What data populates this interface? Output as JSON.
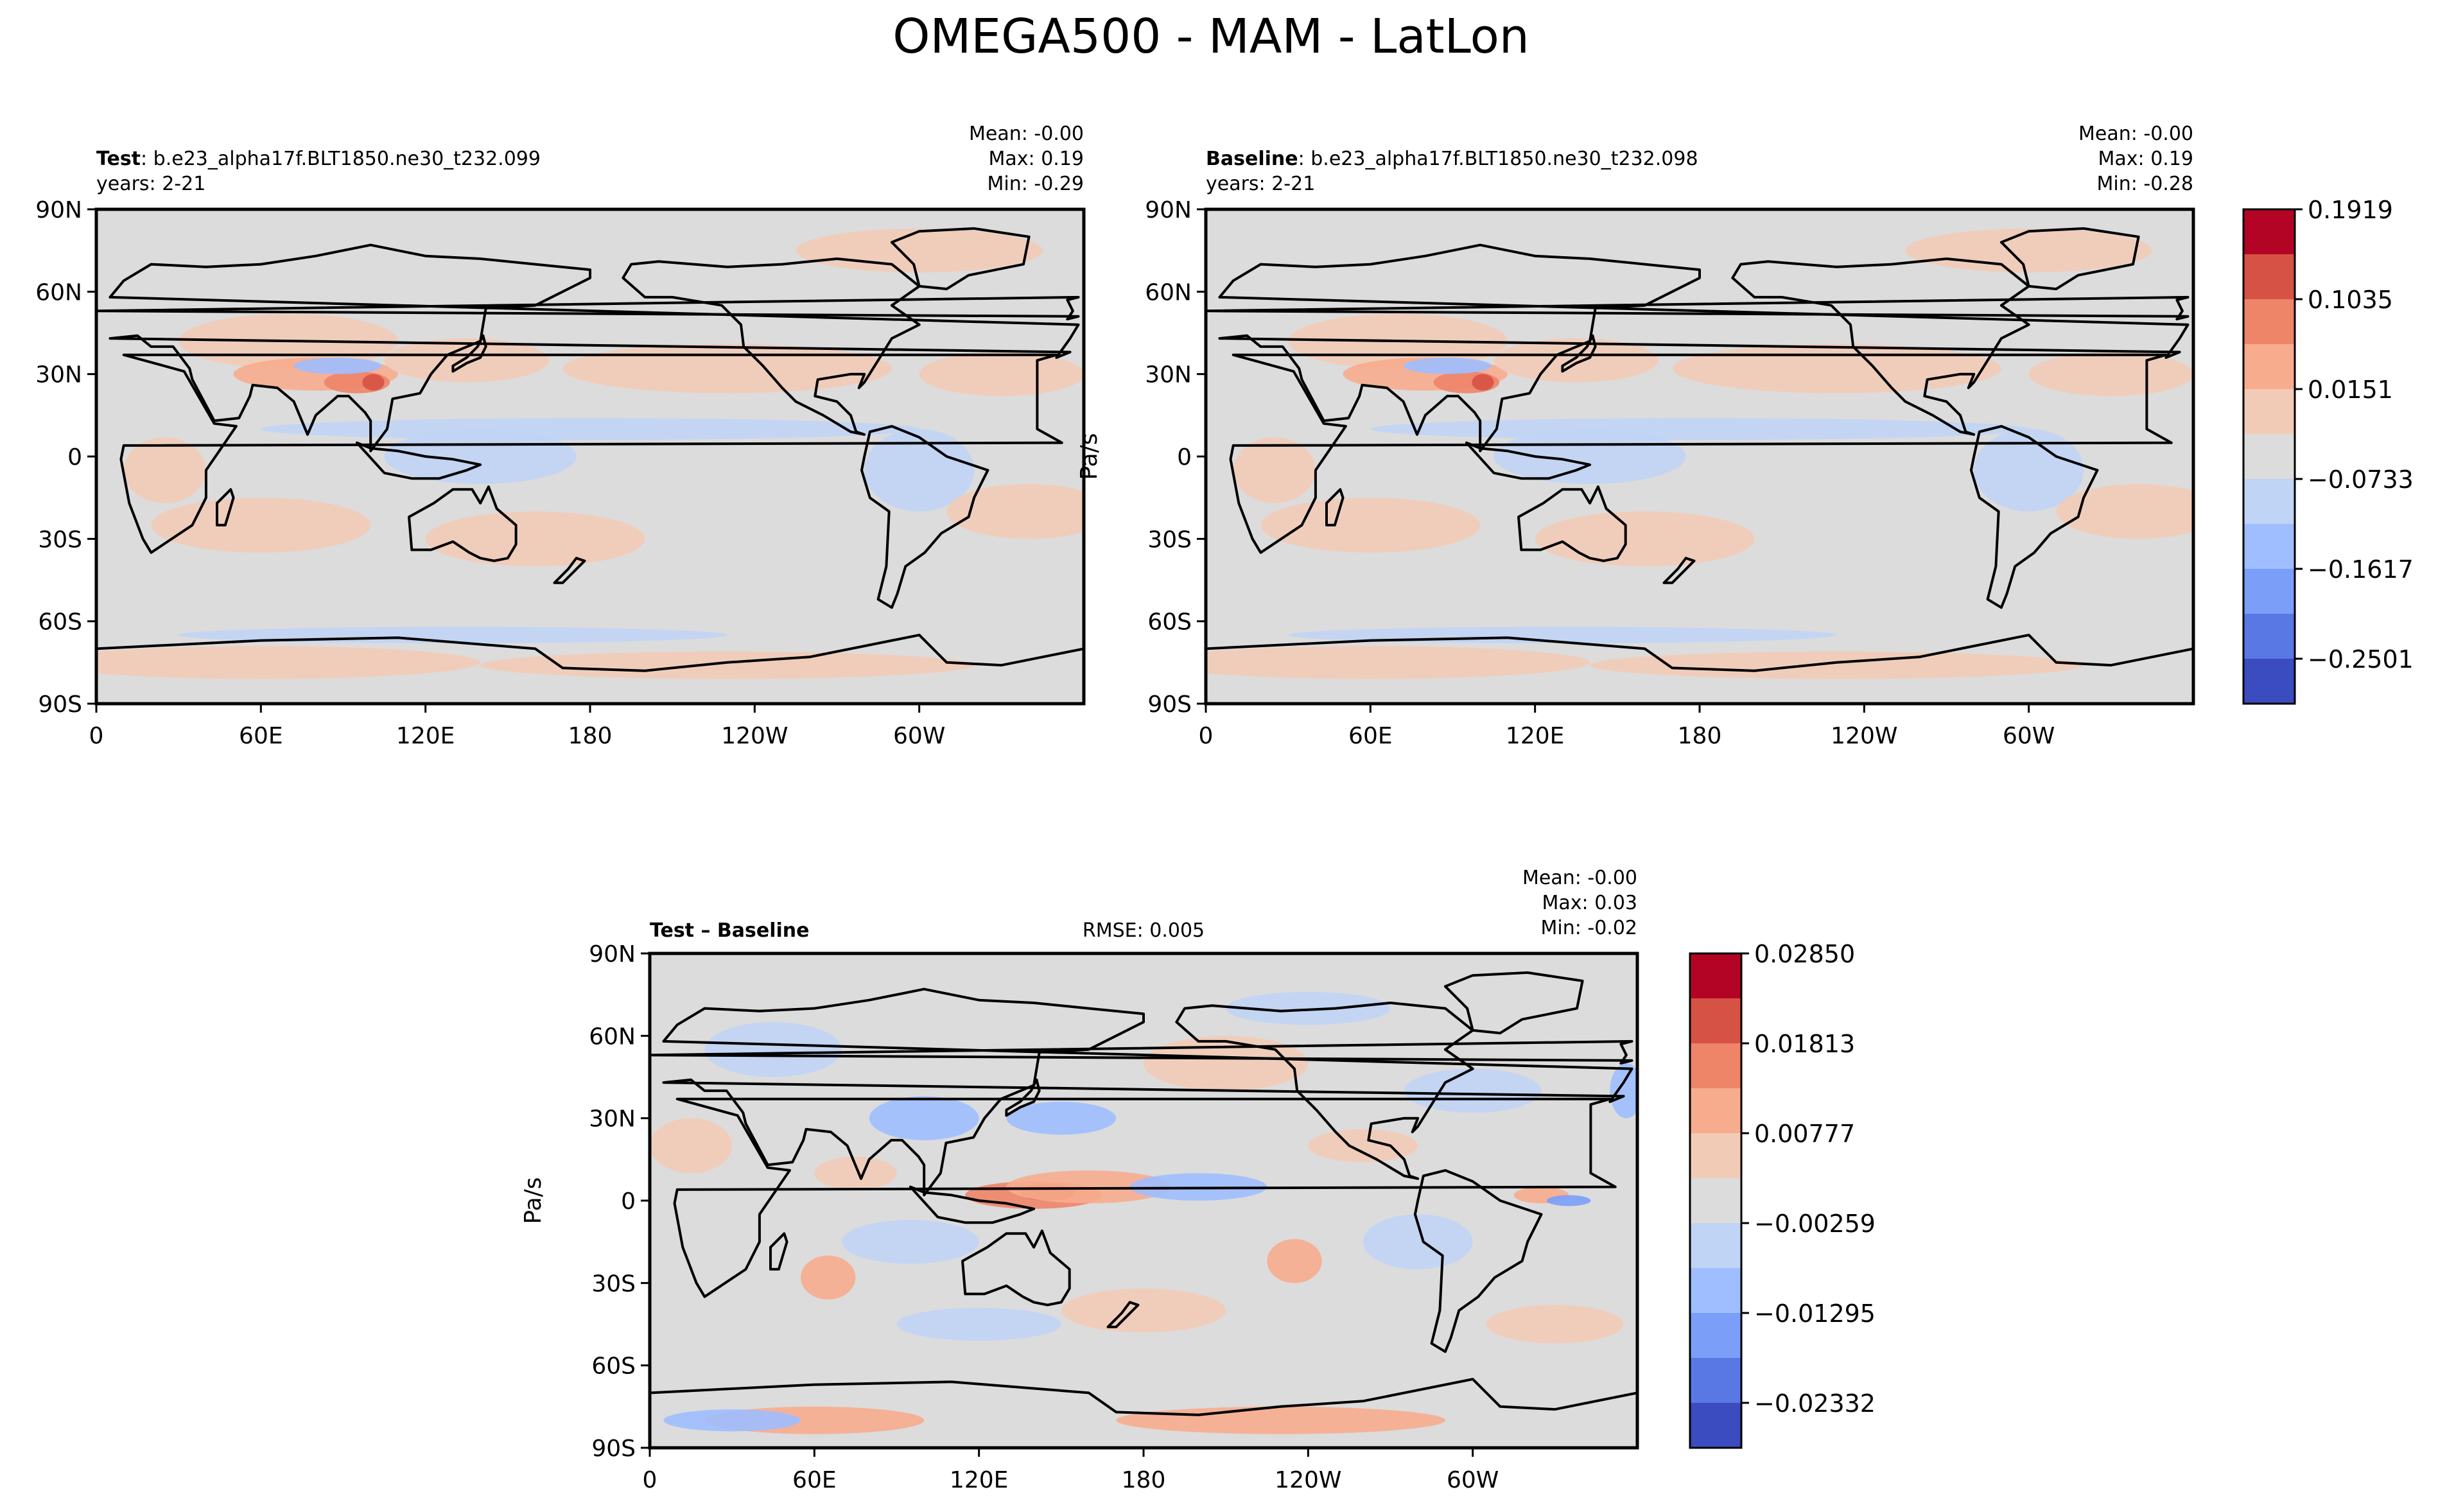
{
  "figure": {
    "title": "OMEGA500 - MAM - LatLon"
  },
  "colors": {
    "levels": [
      "#3b4cc0",
      "#5a78e4",
      "#7b9ff9",
      "#9ebeff",
      "#c0d4f5",
      "#dddcdc",
      "#f2cbb7",
      "#f7ac8e",
      "#ee8468",
      "#d65244",
      "#b40426"
    ],
    "ocean": "#dcdcdc",
    "land": "#d6d6d6"
  },
  "chart_data": [
    {
      "type": "heatmap",
      "panel": "test",
      "title_bold": "Test",
      "title_rest": ": b.e23_alpha17f.BLT1850.ne30_t232.099",
      "years": "years: 2-21",
      "stats": [
        "Mean: -0.00",
        "Max:  0.19",
        "Min: -0.29"
      ],
      "ylabel": "",
      "xticks": [
        "0",
        "60E",
        "120E",
        "180",
        "120W",
        "60W"
      ],
      "yticks": [
        "90N",
        "60N",
        "30N",
        "0",
        "30S",
        "60S",
        "90S"
      ],
      "xlim": [
        0,
        360
      ],
      "ylim": [
        -90,
        90
      ],
      "features": [
        {
          "lon": 70,
          "lat": 42,
          "rx": 40,
          "ry": 10,
          "level": 6
        },
        {
          "lon": 80,
          "lat": 30,
          "rx": 30,
          "ry": 6,
          "level": 7
        },
        {
          "lon": 95,
          "lat": 27,
          "rx": 12,
          "ry": 4,
          "level": 8
        },
        {
          "lon": 101,
          "lat": 27,
          "rx": 4,
          "ry": 3,
          "level": 9
        },
        {
          "lon": 88,
          "lat": 33,
          "rx": 16,
          "ry": 3,
          "level": 3
        },
        {
          "lon": 135,
          "lat": 35,
          "rx": 30,
          "ry": 8,
          "level": 6
        },
        {
          "lon": 230,
          "lat": 32,
          "rx": 60,
          "ry": 9,
          "level": 6
        },
        {
          "lon": 330,
          "lat": 30,
          "rx": 30,
          "ry": 8,
          "level": 6
        },
        {
          "lon": 300,
          "lat": 75,
          "rx": 45,
          "ry": 8,
          "level": 6
        },
        {
          "lon": 180,
          "lat": 10,
          "rx": 120,
          "ry": 4,
          "level": 4
        },
        {
          "lon": 140,
          "lat": 0,
          "rx": 35,
          "ry": 10,
          "level": 4
        },
        {
          "lon": 300,
          "lat": -5,
          "rx": 20,
          "ry": 15,
          "level": 4
        },
        {
          "lon": 25,
          "lat": -5,
          "rx": 15,
          "ry": 12,
          "level": 6
        },
        {
          "lon": 60,
          "lat": -25,
          "rx": 40,
          "ry": 10,
          "level": 6
        },
        {
          "lon": 160,
          "lat": -30,
          "rx": 40,
          "ry": 10,
          "level": 6
        },
        {
          "lon": 340,
          "lat": -20,
          "rx": 30,
          "ry": 10,
          "level": 6
        },
        {
          "lon": 60,
          "lat": -75,
          "rx": 80,
          "ry": 6,
          "level": 6
        },
        {
          "lon": 230,
          "lat": -76,
          "rx": 90,
          "ry": 5,
          "level": 6
        },
        {
          "lon": 130,
          "lat": -65,
          "rx": 100,
          "ry": 3,
          "level": 4
        }
      ]
    },
    {
      "type": "heatmap",
      "panel": "baseline",
      "title_bold": "Baseline",
      "title_rest": ": b.e23_alpha17f.BLT1850.ne30_t232.098",
      "years": "years: 2-21",
      "stats": [
        "Mean: -0.00",
        "Max:  0.19",
        "Min: -0.28"
      ],
      "ylabel": "Pa/s",
      "xticks": [
        "0",
        "60E",
        "120E",
        "180",
        "120W",
        "60W"
      ],
      "yticks": [
        "90N",
        "60N",
        "30N",
        "0",
        "30S",
        "60S",
        "90S"
      ],
      "xlim": [
        0,
        360
      ],
      "ylim": [
        -90,
        90
      ],
      "features": [
        {
          "lon": 70,
          "lat": 42,
          "rx": 40,
          "ry": 10,
          "level": 6
        },
        {
          "lon": 80,
          "lat": 30,
          "rx": 30,
          "ry": 6,
          "level": 7
        },
        {
          "lon": 95,
          "lat": 27,
          "rx": 12,
          "ry": 4,
          "level": 8
        },
        {
          "lon": 101,
          "lat": 27,
          "rx": 4,
          "ry": 3,
          "level": 9
        },
        {
          "lon": 88,
          "lat": 33,
          "rx": 16,
          "ry": 3,
          "level": 3
        },
        {
          "lon": 135,
          "lat": 35,
          "rx": 30,
          "ry": 8,
          "level": 6
        },
        {
          "lon": 230,
          "lat": 32,
          "rx": 60,
          "ry": 9,
          "level": 6
        },
        {
          "lon": 330,
          "lat": 30,
          "rx": 30,
          "ry": 8,
          "level": 6
        },
        {
          "lon": 300,
          "lat": 75,
          "rx": 45,
          "ry": 8,
          "level": 6
        },
        {
          "lon": 180,
          "lat": 10,
          "rx": 120,
          "ry": 4,
          "level": 4
        },
        {
          "lon": 140,
          "lat": 0,
          "rx": 35,
          "ry": 10,
          "level": 4
        },
        {
          "lon": 300,
          "lat": -5,
          "rx": 20,
          "ry": 15,
          "level": 4
        },
        {
          "lon": 25,
          "lat": -5,
          "rx": 15,
          "ry": 12,
          "level": 6
        },
        {
          "lon": 60,
          "lat": -25,
          "rx": 40,
          "ry": 10,
          "level": 6
        },
        {
          "lon": 160,
          "lat": -30,
          "rx": 40,
          "ry": 10,
          "level": 6
        },
        {
          "lon": 340,
          "lat": -20,
          "rx": 30,
          "ry": 10,
          "level": 6
        },
        {
          "lon": 60,
          "lat": -75,
          "rx": 80,
          "ry": 6,
          "level": 6
        },
        {
          "lon": 230,
          "lat": -76,
          "rx": 90,
          "ry": 5,
          "level": 6
        },
        {
          "lon": 130,
          "lat": -65,
          "rx": 100,
          "ry": 3,
          "level": 4
        }
      ]
    },
    {
      "type": "heatmap",
      "panel": "difference",
      "title_bold": "Test – Baseline",
      "rmse": "RMSE: 0.005",
      "stats": [
        "Mean: -0.00",
        "Max:  0.03",
        "Min: -0.02"
      ],
      "ylabel": "Pa/s",
      "xticks": [
        "0",
        "60E",
        "120E",
        "180",
        "120W",
        "60W"
      ],
      "yticks": [
        "90N",
        "60N",
        "30N",
        "0",
        "30S",
        "60S",
        "90S"
      ],
      "xlim": [
        0,
        360
      ],
      "ylim": [
        -90,
        90
      ],
      "features": [
        {
          "lon": 140,
          "lat": 2,
          "rx": 25,
          "ry": 5,
          "level": 8
        },
        {
          "lon": 145,
          "lat": 3,
          "rx": 10,
          "ry": 3,
          "level": 9
        },
        {
          "lon": 160,
          "lat": 5,
          "rx": 30,
          "ry": 6,
          "level": 7
        },
        {
          "lon": 65,
          "lat": -28,
          "rx": 10,
          "ry": 8,
          "level": 7
        },
        {
          "lon": 235,
          "lat": -22,
          "rx": 10,
          "ry": 8,
          "level": 7
        },
        {
          "lon": 325,
          "lat": 2,
          "rx": 10,
          "ry": 3,
          "level": 7
        },
        {
          "lon": 335,
          "lat": 0,
          "rx": 8,
          "ry": 2,
          "level": 2
        },
        {
          "lon": 60,
          "lat": -80,
          "rx": 40,
          "ry": 5,
          "level": 7
        },
        {
          "lon": 230,
          "lat": -80,
          "rx": 60,
          "ry": 5,
          "level": 7
        },
        {
          "lon": 100,
          "lat": 30,
          "rx": 20,
          "ry": 8,
          "level": 3
        },
        {
          "lon": 150,
          "lat": 30,
          "rx": 20,
          "ry": 6,
          "level": 3
        },
        {
          "lon": 200,
          "lat": 5,
          "rx": 25,
          "ry": 5,
          "level": 3
        },
        {
          "lon": 30,
          "lat": -80,
          "rx": 25,
          "ry": 4,
          "level": 3
        },
        {
          "lon": 356,
          "lat": 40,
          "rx": 6,
          "ry": 10,
          "level": 3
        },
        {
          "lon": 45,
          "lat": 55,
          "rx": 25,
          "ry": 10,
          "level": 4
        },
        {
          "lon": 210,
          "lat": 50,
          "rx": 30,
          "ry": 10,
          "level": 6
        },
        {
          "lon": 280,
          "lat": -15,
          "rx": 20,
          "ry": 10,
          "level": 4
        },
        {
          "lon": 15,
          "lat": 20,
          "rx": 15,
          "ry": 10,
          "level": 6
        },
        {
          "lon": 95,
          "lat": -15,
          "rx": 25,
          "ry": 8,
          "level": 4
        },
        {
          "lon": 180,
          "lat": -40,
          "rx": 30,
          "ry": 8,
          "level": 6
        },
        {
          "lon": 300,
          "lat": 40,
          "rx": 25,
          "ry": 8,
          "level": 4
        },
        {
          "lon": 260,
          "lat": 20,
          "rx": 20,
          "ry": 6,
          "level": 6
        },
        {
          "lon": 120,
          "lat": -45,
          "rx": 30,
          "ry": 6,
          "level": 4
        },
        {
          "lon": 330,
          "lat": -45,
          "rx": 25,
          "ry": 7,
          "level": 6
        },
        {
          "lon": 75,
          "lat": 10,
          "rx": 15,
          "ry": 6,
          "level": 6
        },
        {
          "lon": 240,
          "lat": 70,
          "rx": 30,
          "ry": 6,
          "level": 4
        }
      ]
    }
  ],
  "colorbars": [
    {
      "for": "test-baseline",
      "ticks": [
        "0.1919",
        "0.1035",
        "0.0151",
        "−0.0733",
        "−0.1617",
        "−0.2501"
      ]
    },
    {
      "for": "difference",
      "ticks": [
        "0.02850",
        "0.01813",
        "0.00777",
        "−0.00259",
        "−0.01295",
        "−0.02332"
      ]
    }
  ]
}
